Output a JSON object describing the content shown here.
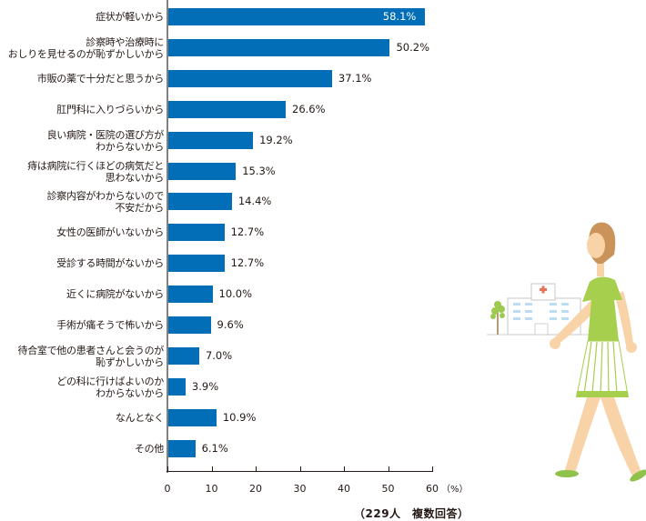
{
  "chart_data": {
    "type": "bar",
    "orientation": "horizontal",
    "title": "",
    "xlabel": "(%)",
    "ylabel": "",
    "xlim": [
      0,
      60
    ],
    "xticks": [
      0,
      10,
      20,
      30,
      40,
      50,
      60
    ],
    "grid": false,
    "bar_color": "#036eb8",
    "categories": [
      "症状が軽いから",
      "診察時や治療時に\nおしりを見せるのが恥ずかしいから",
      "市販の薬で十分だと思うから",
      "肛門科に入りづらいから",
      "良い病院・医院の選び方が\nわからないから",
      "痔は病院に行くほどの病気だと\n思わないから",
      "診察内容がわからないので\n不安だから",
      "女性の医師がいないから",
      "受診する時間がないから",
      "近くに病院がないから",
      "手術が痛そうで怖いから",
      "待合室で他の患者さんと会うのが\n恥ずかしいから",
      "どの科に行けばよいのか\nわからないから",
      "なんとなく",
      "その他"
    ],
    "values": [
      58.1,
      50.2,
      37.1,
      26.6,
      19.2,
      15.3,
      14.4,
      12.7,
      12.7,
      10.0,
      9.6,
      7.0,
      3.9,
      10.9,
      6.1
    ],
    "value_labels": [
      "58.1%",
      "50.2%",
      "37.1%",
      "26.6%",
      "19.2%",
      "15.3%",
      "14.4%",
      "12.7%",
      "12.7%",
      "10.0%",
      "9.6%",
      "7.0%",
      "3.9%",
      "10.9%",
      "6.1%"
    ],
    "annotations": [
      "(229人　複数回答)"
    ]
  },
  "axis": {
    "unit": "（%）",
    "ticks": [
      "0",
      "10",
      "20",
      "30",
      "40",
      "50",
      "60"
    ]
  },
  "footnote": "（229人　複数回答）",
  "illustration": {
    "description": "woman-walking-to-hospital",
    "colors": {
      "shirt": "#a5cf4c",
      "skin": "#f9d3a8",
      "hair": "#c9935a",
      "cross": "#e8715a"
    }
  }
}
